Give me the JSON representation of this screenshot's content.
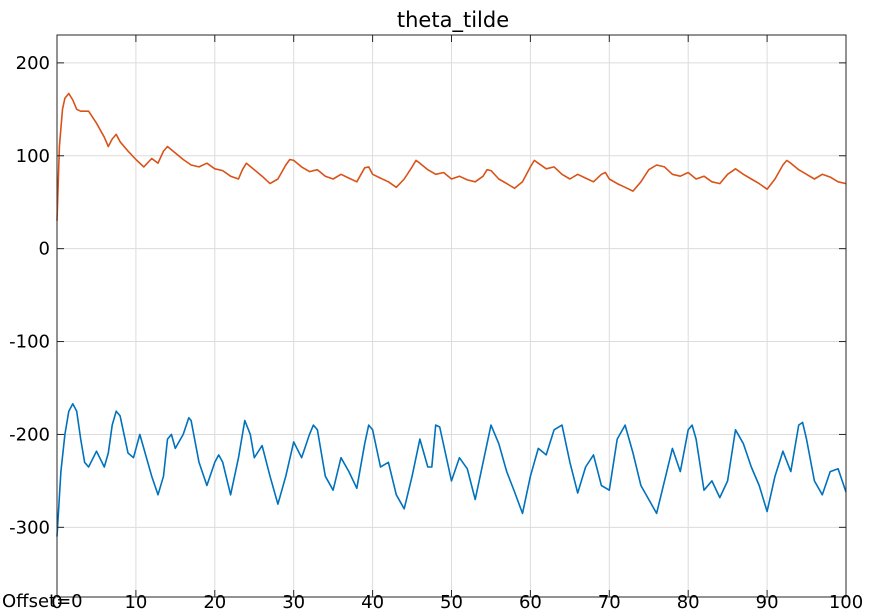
{
  "chart_data": {
    "type": "line",
    "title": "theta_tilde",
    "offset_label": "Offset=0",
    "xlim": [
      0,
      100
    ],
    "ylim": [
      -375,
      230
    ],
    "x_ticks": [
      0,
      10,
      20,
      30,
      40,
      50,
      60,
      70,
      80,
      90,
      100
    ],
    "y_ticks": [
      -300,
      -200,
      -100,
      0,
      100,
      200
    ],
    "grid": true,
    "series": [
      {
        "color": "#d95319",
        "points": [
          [
            0,
            30
          ],
          [
            0.3,
            110
          ],
          [
            0.7,
            150
          ],
          [
            1,
            162
          ],
          [
            1.5,
            167
          ],
          [
            2,
            160
          ],
          [
            2.5,
            150
          ],
          [
            3,
            148
          ],
          [
            4,
            148
          ],
          [
            5,
            135
          ],
          [
            6,
            120
          ],
          [
            6.5,
            110
          ],
          [
            7,
            118
          ],
          [
            7.5,
            123
          ],
          [
            8,
            115
          ],
          [
            9,
            105
          ],
          [
            10,
            96
          ],
          [
            11,
            88
          ],
          [
            12,
            97
          ],
          [
            12.8,
            92
          ],
          [
            13.5,
            105
          ],
          [
            14,
            110
          ],
          [
            15,
            103
          ],
          [
            16,
            96
          ],
          [
            17,
            90
          ],
          [
            18,
            88
          ],
          [
            19,
            92
          ],
          [
            20,
            86
          ],
          [
            21,
            84
          ],
          [
            22,
            78
          ],
          [
            23,
            75
          ],
          [
            23.5,
            85
          ],
          [
            24,
            92
          ],
          [
            25,
            85
          ],
          [
            26,
            78
          ],
          [
            27,
            70
          ],
          [
            28,
            75
          ],
          [
            29,
            90
          ],
          [
            29.5,
            96
          ],
          [
            30,
            95
          ],
          [
            31,
            88
          ],
          [
            32,
            83
          ],
          [
            33,
            85
          ],
          [
            34,
            78
          ],
          [
            35,
            75
          ],
          [
            36,
            80
          ],
          [
            37,
            76
          ],
          [
            38,
            72
          ],
          [
            39,
            87
          ],
          [
            39.5,
            88
          ],
          [
            40,
            80
          ],
          [
            41,
            76
          ],
          [
            42,
            72
          ],
          [
            43,
            66
          ],
          [
            44,
            75
          ],
          [
            45,
            88
          ],
          [
            45.5,
            95
          ],
          [
            46,
            92
          ],
          [
            47,
            85
          ],
          [
            48,
            80
          ],
          [
            49,
            82
          ],
          [
            50,
            75
          ],
          [
            51,
            78
          ],
          [
            52,
            74
          ],
          [
            53,
            72
          ],
          [
            54,
            78
          ],
          [
            54.5,
            85
          ],
          [
            55,
            84
          ],
          [
            56,
            75
          ],
          [
            57,
            70
          ],
          [
            58,
            65
          ],
          [
            59,
            72
          ],
          [
            60,
            88
          ],
          [
            60.5,
            95
          ],
          [
            61,
            92
          ],
          [
            62,
            86
          ],
          [
            63,
            88
          ],
          [
            64,
            80
          ],
          [
            65,
            75
          ],
          [
            66,
            80
          ],
          [
            67,
            76
          ],
          [
            68,
            72
          ],
          [
            69,
            80
          ],
          [
            69.5,
            82
          ],
          [
            70,
            75
          ],
          [
            71,
            70
          ],
          [
            72,
            66
          ],
          [
            73,
            62
          ],
          [
            74,
            72
          ],
          [
            75,
            85
          ],
          [
            76,
            90
          ],
          [
            77,
            88
          ],
          [
            78,
            80
          ],
          [
            79,
            78
          ],
          [
            80,
            82
          ],
          [
            81,
            75
          ],
          [
            82,
            78
          ],
          [
            83,
            72
          ],
          [
            84,
            70
          ],
          [
            85,
            80
          ],
          [
            86,
            86
          ],
          [
            87,
            80
          ],
          [
            88,
            75
          ],
          [
            89,
            70
          ],
          [
            90,
            64
          ],
          [
            91,
            75
          ],
          [
            92,
            90
          ],
          [
            92.5,
            95
          ],
          [
            93,
            92
          ],
          [
            94,
            85
          ],
          [
            95,
            80
          ],
          [
            96,
            75
          ],
          [
            97,
            80
          ],
          [
            98,
            77
          ],
          [
            99,
            72
          ],
          [
            100,
            70
          ]
        ]
      },
      {
        "color": "#0072bd",
        "points": [
          [
            0,
            -310
          ],
          [
            0.5,
            -240
          ],
          [
            1,
            -200
          ],
          [
            1.5,
            -175
          ],
          [
            2,
            -167
          ],
          [
            2.5,
            -175
          ],
          [
            3,
            -205
          ],
          [
            3.5,
            -230
          ],
          [
            4,
            -235
          ],
          [
            5,
            -218
          ],
          [
            6,
            -235
          ],
          [
            6.5,
            -220
          ],
          [
            7,
            -190
          ],
          [
            7.5,
            -175
          ],
          [
            8,
            -180
          ],
          [
            9,
            -220
          ],
          [
            9.7,
            -225
          ],
          [
            10.5,
            -200
          ],
          [
            11,
            -215
          ],
          [
            12,
            -245
          ],
          [
            12.8,
            -265
          ],
          [
            13.5,
            -245
          ],
          [
            14,
            -205
          ],
          [
            14.5,
            -200
          ],
          [
            15,
            -215
          ],
          [
            16,
            -200
          ],
          [
            16.7,
            -182
          ],
          [
            17,
            -185
          ],
          [
            18,
            -230
          ],
          [
            19,
            -255
          ],
          [
            20,
            -230
          ],
          [
            20.5,
            -222
          ],
          [
            21,
            -230
          ],
          [
            22,
            -265
          ],
          [
            23,
            -225
          ],
          [
            23.8,
            -185
          ],
          [
            24.5,
            -200
          ],
          [
            25,
            -225
          ],
          [
            26,
            -212
          ],
          [
            27,
            -245
          ],
          [
            28,
            -275
          ],
          [
            29,
            -245
          ],
          [
            30,
            -208
          ],
          [
            31,
            -225
          ],
          [
            32,
            -200
          ],
          [
            32.5,
            -190
          ],
          [
            33,
            -195
          ],
          [
            34,
            -245
          ],
          [
            35,
            -260
          ],
          [
            36,
            -225
          ],
          [
            37,
            -240
          ],
          [
            38,
            -258
          ],
          [
            39,
            -210
          ],
          [
            39.5,
            -190
          ],
          [
            40,
            -195
          ],
          [
            41,
            -235
          ],
          [
            42,
            -230
          ],
          [
            43,
            -265
          ],
          [
            44,
            -280
          ],
          [
            45,
            -245
          ],
          [
            46,
            -205
          ],
          [
            47,
            -235
          ],
          [
            47.5,
            -235
          ],
          [
            48,
            -190
          ],
          [
            48.5,
            -192
          ],
          [
            50,
            -250
          ],
          [
            51,
            -225
          ],
          [
            52,
            -237
          ],
          [
            53,
            -270
          ],
          [
            54,
            -230
          ],
          [
            55,
            -190
          ],
          [
            56,
            -210
          ],
          [
            57,
            -240
          ],
          [
            58,
            -262
          ],
          [
            59,
            -285
          ],
          [
            60,
            -245
          ],
          [
            61,
            -215
          ],
          [
            62,
            -222
          ],
          [
            63,
            -195
          ],
          [
            64,
            -190
          ],
          [
            65,
            -230
          ],
          [
            66,
            -263
          ],
          [
            67,
            -235
          ],
          [
            68,
            -222
          ],
          [
            69,
            -255
          ],
          [
            70,
            -260
          ],
          [
            71,
            -205
          ],
          [
            72,
            -190
          ],
          [
            73,
            -220
          ],
          [
            74,
            -255
          ],
          [
            75,
            -270
          ],
          [
            76,
            -285
          ],
          [
            77,
            -250
          ],
          [
            78,
            -215
          ],
          [
            79,
            -240
          ],
          [
            80,
            -195
          ],
          [
            80.5,
            -190
          ],
          [
            81,
            -205
          ],
          [
            82,
            -260
          ],
          [
            83,
            -250
          ],
          [
            84,
            -268
          ],
          [
            85,
            -250
          ],
          [
            86,
            -195
          ],
          [
            87,
            -210
          ],
          [
            88,
            -235
          ],
          [
            89,
            -255
          ],
          [
            90,
            -283
          ],
          [
            91,
            -245
          ],
          [
            92,
            -218
          ],
          [
            93,
            -240
          ],
          [
            94,
            -190
          ],
          [
            94.5,
            -187
          ],
          [
            95,
            -205
          ],
          [
            96,
            -250
          ],
          [
            97,
            -265
          ],
          [
            98,
            -240
          ],
          [
            99,
            -237
          ],
          [
            100,
            -262
          ]
        ]
      }
    ]
  }
}
